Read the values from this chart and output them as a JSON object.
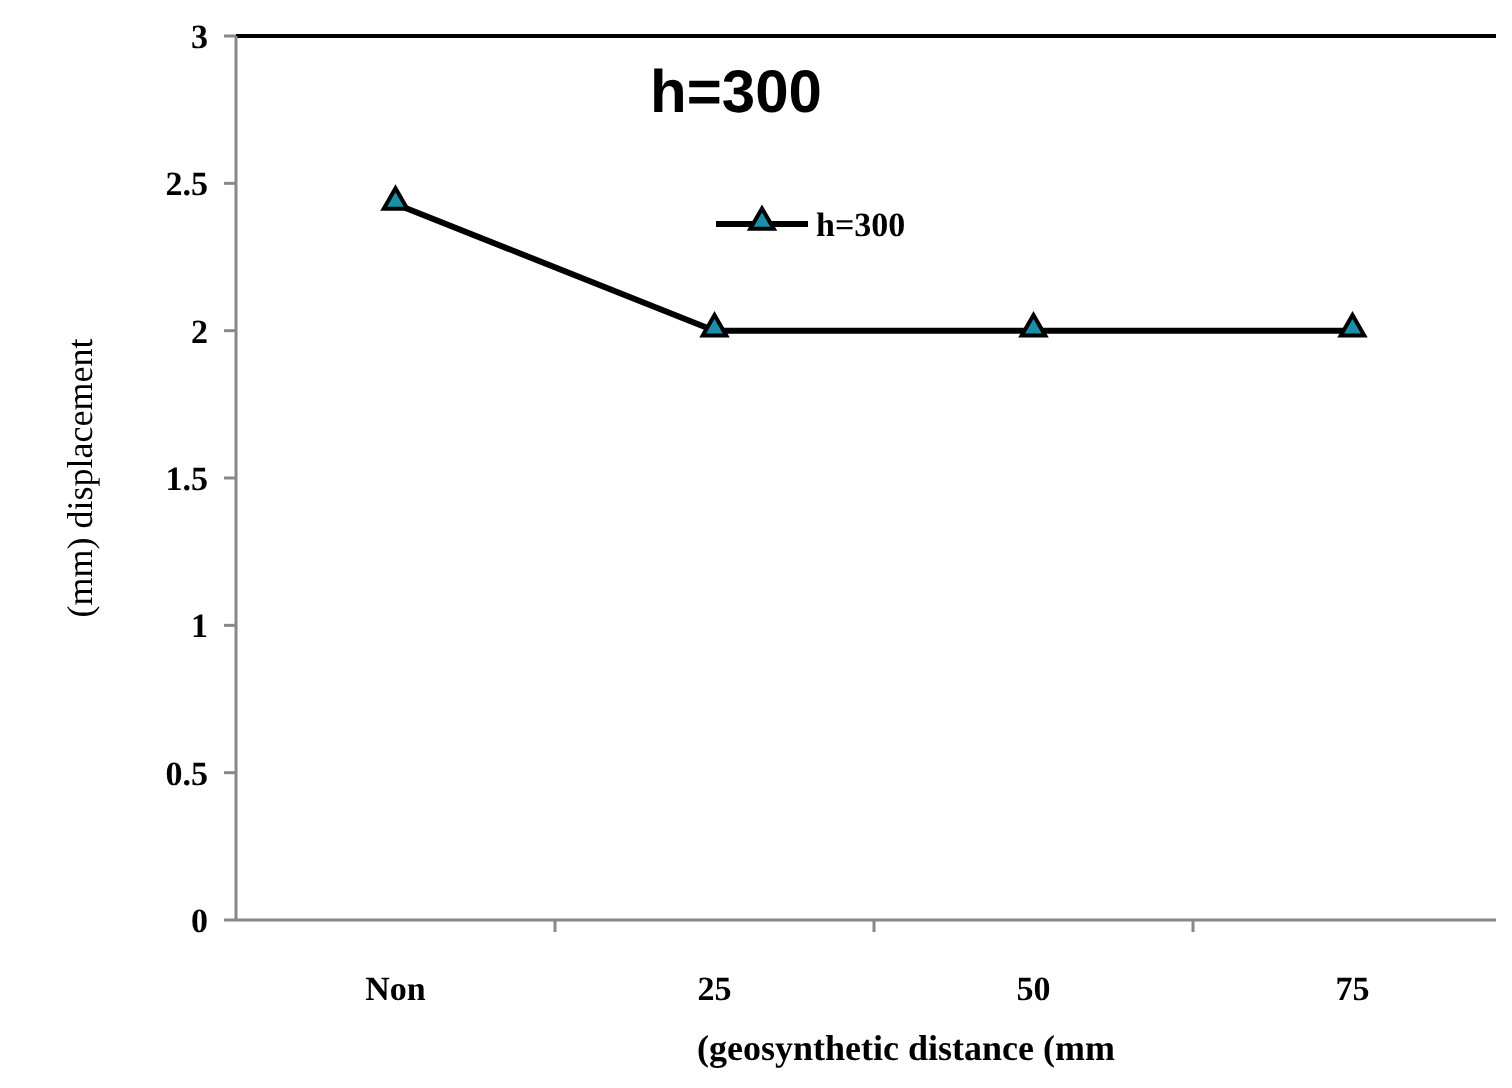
{
  "chart_data": {
    "type": "line",
    "title": "h=300",
    "xlabel": "(geosynthetic distance (mm",
    "ylabel": "(mm)    displacement",
    "categories": [
      "Non",
      "25",
      "50",
      "75"
    ],
    "series": [
      {
        "name": "h=300",
        "color": "#000000",
        "values": [
          2.43,
          2,
          2,
          2
        ]
      }
    ],
    "ylim": [
      0,
      3
    ],
    "yticks": [
      0,
      0.5,
      1,
      1.5,
      2,
      2.5,
      3
    ],
    "grid": false,
    "legend": "top",
    "marker": "triangle",
    "line_style": "solid"
  }
}
